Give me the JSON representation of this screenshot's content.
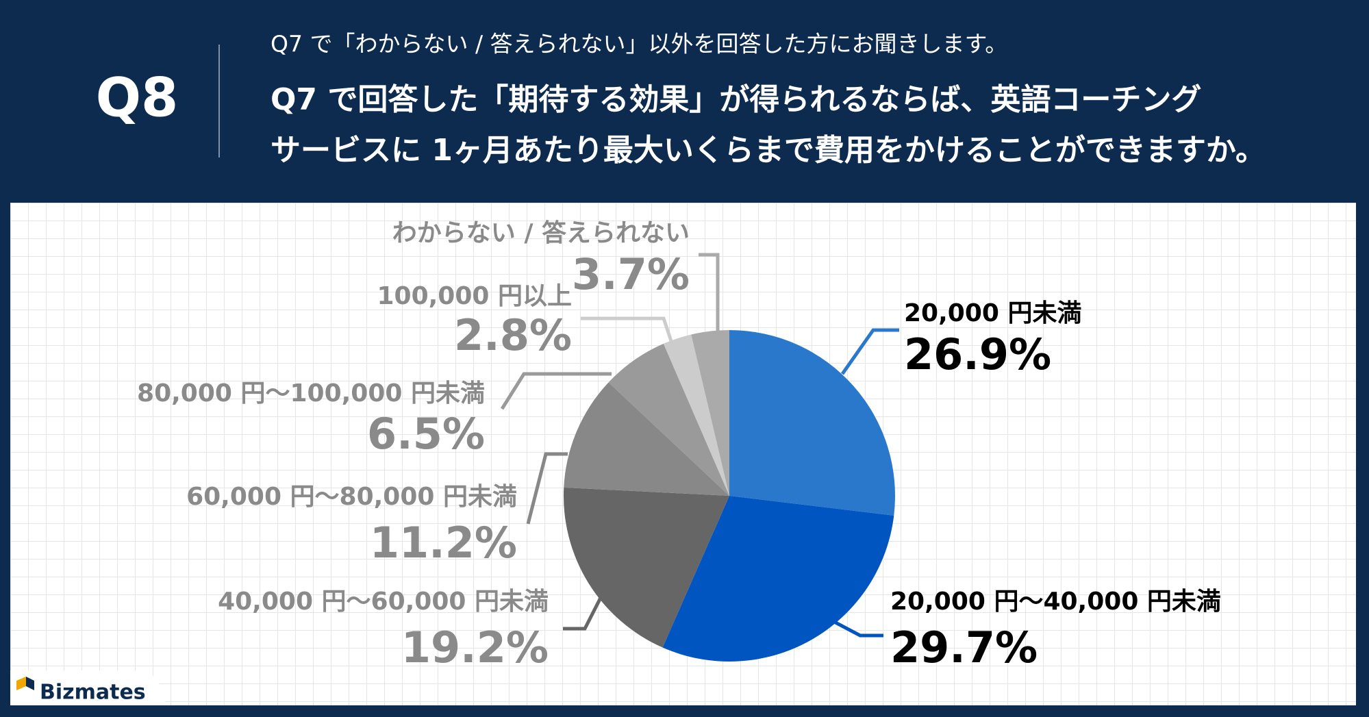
{
  "badge": "Q8",
  "brand": "Bizmates",
  "chart_data": {
    "type": "pie",
    "subtitle": "Q7 で「わからない / 答えられない」以外を回答した方にお聞きします。",
    "title": [
      "Q7 で回答した「期待する効果」が得られるならば、英語コーチング",
      "サービスに 1ヶ月あたり最大いくらまで費用をかけることができますか。"
    ],
    "categories": [
      "20,000 円未満",
      "20,000 円～40,000 円未満",
      "40,000 円～60,000 円未満",
      "60,000 円～80,000 円未満",
      "80,000 円～100,000 円未満",
      "100,000 円以上",
      "わからない / 答えられない"
    ],
    "values": [
      26.9,
      29.7,
      19.2,
      11.2,
      6.5,
      2.8,
      3.7
    ],
    "value_labels": [
      "26.9%",
      "29.7%",
      "19.2%",
      "11.2%",
      "6.5%",
      "2.8%",
      "3.7%"
    ],
    "colors": [
      "#2a78cc",
      "#0055c0",
      "#666666",
      "#888888",
      "#9a9a9a",
      "#cccccc",
      "#aaaaaa"
    ],
    "label_colors": [
      "#000000",
      "#000000",
      "#8a8a8a",
      "#8a8a8a",
      "#8a8a8a",
      "#8a8a8a",
      "#8a8a8a"
    ]
  }
}
